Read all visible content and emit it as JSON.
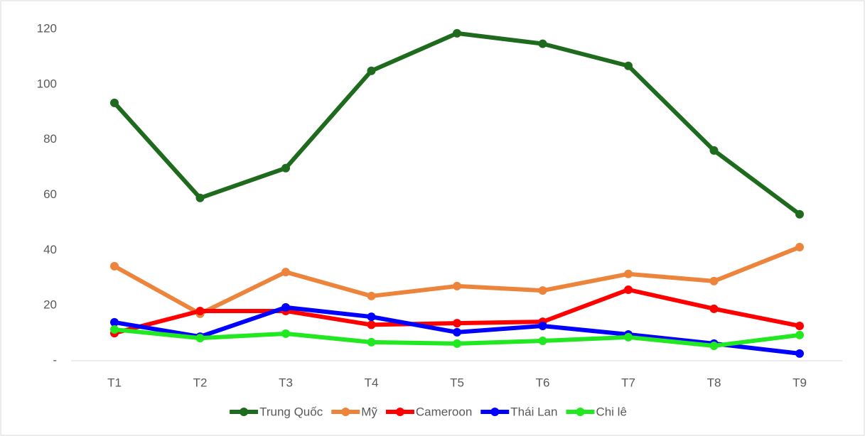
{
  "chart_data": {
    "type": "line",
    "categories": [
      "T1",
      "T2",
      "T3",
      "T4",
      "T5",
      "T6",
      "T7",
      "T8",
      "T9"
    ],
    "series": [
      {
        "name": "Trung Quốc",
        "color": "#1e6b1e",
        "values": [
          93.3,
          58.9,
          69.7,
          104.9,
          118.5,
          114.7,
          106.7,
          76.1,
          53
        ]
      },
      {
        "name": "Mỹ",
        "color": "#ed843c",
        "values": [
          34.2,
          17,
          32.1,
          23.4,
          27,
          25.4,
          31.4,
          28.8,
          41.1
        ]
      },
      {
        "name": "Cameroon",
        "color": "#ff0000",
        "values": [
          10,
          18,
          18,
          13,
          13.6,
          14.1,
          25.7,
          18.8,
          12.6
        ]
      },
      {
        "name": "Thái Lan",
        "color": "#0000ff",
        "values": [
          13.9,
          8.7,
          19.3,
          15.9,
          10.3,
          12.6,
          9.5,
          6.2,
          2.6
        ]
      },
      {
        "name": "Chi lê",
        "color": "#22e822",
        "values": [
          11.3,
          8.2,
          9.8,
          6.7,
          6.2,
          7.2,
          8.5,
          5.4,
          9.3
        ]
      }
    ],
    "ylim": [
      0,
      120
    ],
    "yticks": [
      {
        "value": 0,
        "label": "-"
      },
      20,
      40,
      60,
      80,
      100,
      120
    ],
    "grid": false,
    "legend": "bottom"
  }
}
